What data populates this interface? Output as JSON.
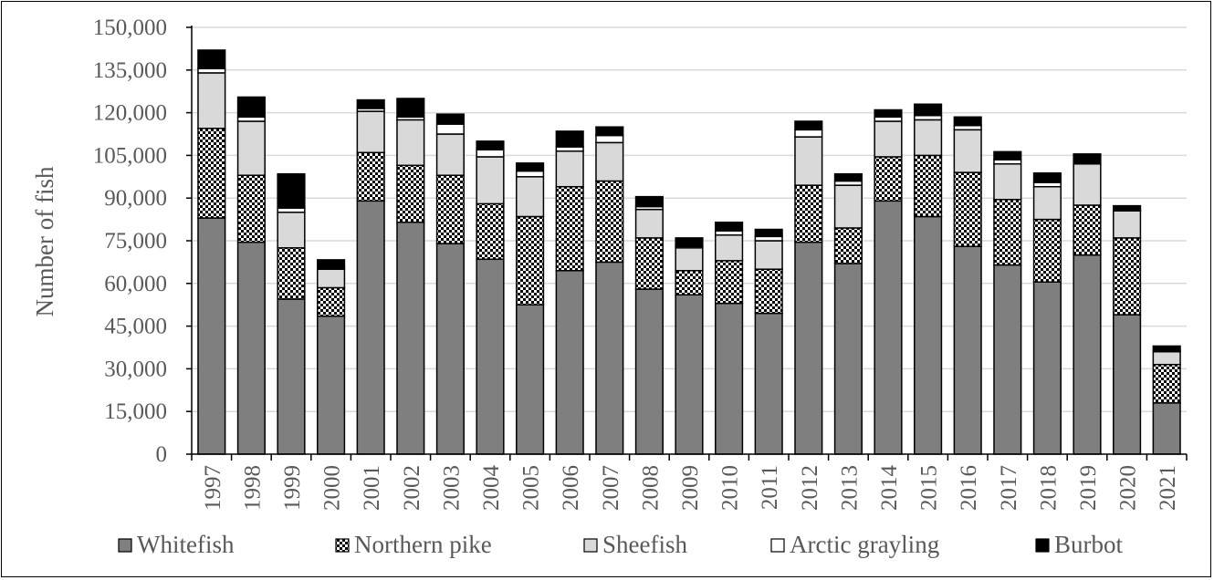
{
  "chart_data": {
    "type": "bar",
    "stacked": true,
    "title": "",
    "xlabel": "",
    "ylabel": "Number of fish",
    "ylim": [
      0,
      150000
    ],
    "ytick_step": 15000,
    "yticks": [
      "0",
      "15,000",
      "30,000",
      "45,000",
      "60,000",
      "75,000",
      "90,000",
      "105,000",
      "120,000",
      "135,000",
      "150,000"
    ],
    "grid": true,
    "legend_position": "bottom",
    "categories": [
      "1997",
      "1998",
      "1999",
      "2000",
      "2001",
      "2002",
      "2003",
      "2004",
      "2005",
      "2006",
      "2007",
      "2008",
      "2009",
      "2010",
      "2011",
      "2012",
      "2013",
      "2014",
      "2015",
      "2016",
      "2017",
      "2018",
      "2019",
      "2020",
      "2021"
    ],
    "series": [
      {
        "name": "Whitefish",
        "pattern": "solid",
        "color": "#7f7f7f",
        "values": [
          83000,
          74500,
          54500,
          48500,
          89000,
          81500,
          74000,
          68500,
          52500,
          64500,
          67500,
          58000,
          56000,
          53000,
          49500,
          74500,
          67000,
          89000,
          83500,
          73000,
          66500,
          60500,
          70000,
          49000,
          18000
        ]
      },
      {
        "name": "Northern pike",
        "pattern": "checker",
        "color": "#000000",
        "values": [
          31500,
          23500,
          18000,
          10000,
          17000,
          20000,
          24000,
          19500,
          31000,
          29500,
          28500,
          18000,
          8500,
          15000,
          15500,
          20000,
          12500,
          15500,
          21500,
          26000,
          23000,
          22000,
          17500,
          27000,
          13500
        ]
      },
      {
        "name": "Sheefish",
        "pattern": "solid",
        "color": "#d9d9d9",
        "values": [
          19500,
          19000,
          12500,
          6500,
          14500,
          16000,
          14500,
          16500,
          14000,
          12500,
          13500,
          10000,
          8000,
          9000,
          10000,
          17000,
          15000,
          12500,
          12500,
          15000,
          12500,
          11500,
          14500,
          9500,
          4500
        ]
      },
      {
        "name": "Arctic grayling",
        "pattern": "solid",
        "color": "#ffffff",
        "values": [
          1500,
          1500,
          1500,
          500,
          1000,
          1000,
          3500,
          2500,
          2000,
          1500,
          2500,
          1000,
          500,
          1500,
          1500,
          2500,
          1500,
          1500,
          1500,
          1500,
          1500,
          1500,
          500,
          500,
          500
        ]
      },
      {
        "name": "Burbot",
        "pattern": "solid",
        "color": "#000000",
        "values": [
          6500,
          7000,
          12000,
          2800,
          3000,
          6500,
          3500,
          3000,
          2800,
          5500,
          3000,
          3500,
          3000,
          3000,
          2500,
          3000,
          2500,
          2500,
          4000,
          3000,
          2800,
          3300,
          3000,
          1300,
          1500
        ]
      }
    ]
  }
}
